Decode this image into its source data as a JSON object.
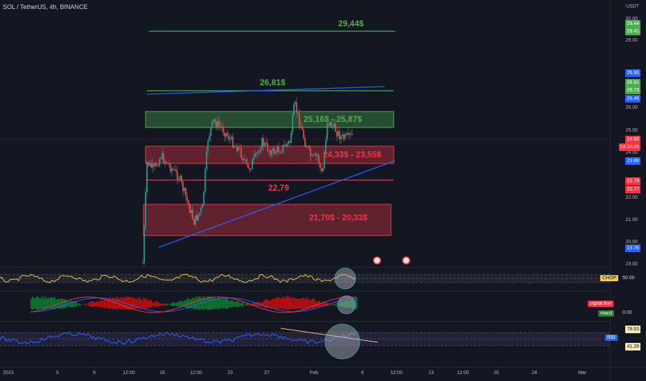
{
  "header": {
    "symbol": "SOL / TetherUS, 4h, BINANCE",
    "currency": "USDT"
  },
  "price_axis": {
    "ticks": [
      "30.00",
      "29.00",
      "26.00",
      "25.00",
      "24.00",
      "22.00",
      "21.00",
      "20.00",
      "19.00"
    ],
    "badges": [
      {
        "text": "29.44",
        "color": "#4caf50"
      },
      {
        "text": "29.41",
        "color": "#4caf50"
      },
      {
        "text": "26.95",
        "color": "#2962ff"
      },
      {
        "text": "26.81",
        "color": "#4caf50"
      },
      {
        "text": "26.79",
        "color": "#4caf50"
      },
      {
        "text": "26.46",
        "color": "#2962ff"
      },
      {
        "text": "24.65",
        "color": "#f23645"
      },
      {
        "text": "03:20:25",
        "color": "#f23645"
      },
      {
        "text": "23.69",
        "color": "#2962ff"
      },
      {
        "text": "22.79",
        "color": "#f23645"
      },
      {
        "text": "22.77",
        "color": "#f23645"
      },
      {
        "text": "19.76",
        "color": "#2962ff"
      }
    ]
  },
  "annotations": {
    "level_top": "29,44$",
    "level_resistance": "26,81$",
    "zone_green": "25,16$ - 25,87$",
    "zone_red_upper": "24,33$ - 23,55$",
    "level_mid": "22,79",
    "zone_red_lower": "21,70$ - 20,33$"
  },
  "indicators": {
    "chop": {
      "label": "CHOP",
      "value": "50.00",
      "color": "#f2c94c"
    },
    "macd": {
      "signal_label": "signal line",
      "macd_label": "macd",
      "value": "0.00"
    },
    "rsi": {
      "label": "RSI",
      "upper": "78.63",
      "lower": "41.28",
      "color": "#2962ff"
    }
  },
  "date_axis": [
    "2023",
    "5",
    "9",
    "12:00",
    "16",
    "12:00",
    "23",
    "27",
    "Feb",
    "6",
    "12:00",
    "13",
    "12:00",
    "20",
    "24",
    "Mar"
  ],
  "colors": {
    "green": "#4caf50",
    "red": "#f23645",
    "blue": "#2962ff",
    "bg": "#131722"
  }
}
